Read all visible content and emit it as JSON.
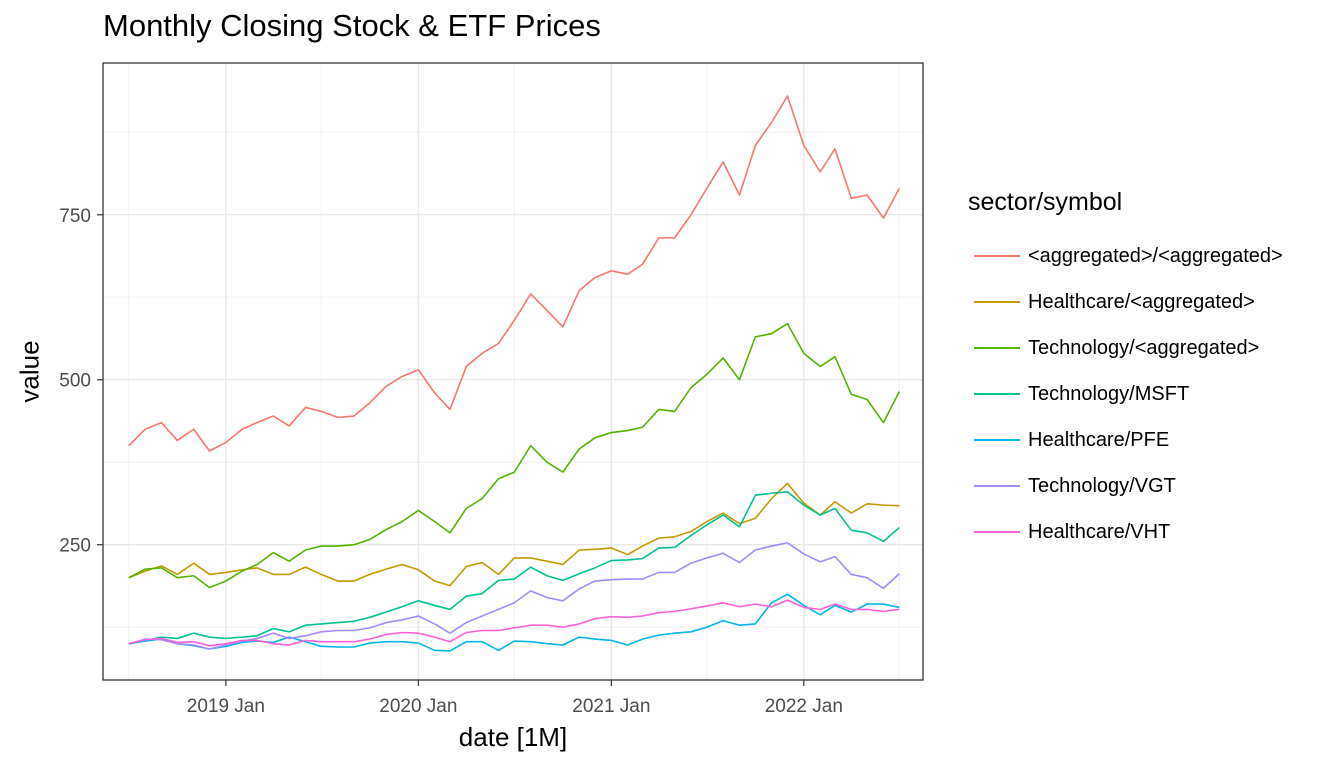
{
  "chart_data": {
    "type": "line",
    "title": "Monthly Closing Stock & ETF Prices",
    "xlabel": "date [1M]",
    "ylabel": "value",
    "x_ticks": [
      "2019 Jan",
      "2020 Jan",
      "2021 Jan",
      "2022 Jan"
    ],
    "y_ticks": [
      250,
      500,
      750
    ],
    "ylim": [
      45,
      980
    ],
    "xlim": [
      "2018-05-13",
      "2022-08-15"
    ],
    "grid": true,
    "legend": {
      "title": "sector/symbol",
      "position": "right"
    },
    "x": [
      "2018-07",
      "2018-08",
      "2018-09",
      "2018-10",
      "2018-11",
      "2018-12",
      "2019-01",
      "2019-02",
      "2019-03",
      "2019-04",
      "2019-05",
      "2019-06",
      "2019-07",
      "2019-08",
      "2019-09",
      "2019-10",
      "2019-11",
      "2019-12",
      "2020-01",
      "2020-02",
      "2020-03",
      "2020-04",
      "2020-05",
      "2020-06",
      "2020-07",
      "2020-08",
      "2020-09",
      "2020-10",
      "2020-11",
      "2020-12",
      "2021-01",
      "2021-02",
      "2021-03",
      "2021-04",
      "2021-05",
      "2021-06",
      "2021-07",
      "2021-08",
      "2021-09",
      "2021-10",
      "2021-11",
      "2021-12",
      "2022-01",
      "2022-02",
      "2022-03",
      "2022-04",
      "2022-05",
      "2022-06",
      "2022-07"
    ],
    "series": [
      {
        "name": "<aggregated>/<aggregated>",
        "color": "#F8766D",
        "values": [
          400,
          425,
          435,
          408,
          425,
          392,
          405,
          425,
          435,
          445,
          430,
          458,
          452,
          443,
          445,
          465,
          490,
          505,
          515,
          480,
          455,
          520,
          540,
          555,
          590,
          630,
          605,
          580,
          635,
          655,
          665,
          660,
          675,
          715,
          715,
          750,
          790,
          830,
          780,
          855,
          890,
          930,
          855,
          815,
          850,
          775,
          780,
          745,
          790
        ]
      },
      {
        "name": "Healthcare/<aggregated>",
        "color": "#C49A00",
        "values": [
          200,
          210,
          218,
          205,
          222,
          205,
          208,
          212,
          215,
          205,
          205,
          216,
          205,
          195,
          195,
          205,
          213,
          220,
          212,
          195,
          188,
          217,
          223,
          205,
          230,
          230,
          225,
          220,
          242,
          243,
          245,
          235,
          248,
          260,
          262,
          270,
          285,
          298,
          282,
          290,
          320,
          343,
          313,
          295,
          315,
          298,
          312,
          310,
          309
        ]
      },
      {
        "name": "Technology/<aggregated>",
        "color": "#53B400",
        "values": [
          200,
          213,
          215,
          200,
          203,
          185,
          195,
          210,
          220,
          238,
          225,
          242,
          248,
          248,
          250,
          258,
          273,
          285,
          302,
          285,
          268,
          305,
          320,
          350,
          360,
          400,
          375,
          360,
          395,
          412,
          420,
          423,
          428,
          455,
          452,
          488,
          508,
          533,
          500,
          565,
          570,
          585,
          540,
          520,
          535,
          478,
          470,
          435,
          482
        ]
      },
      {
        "name": "Technology/MSFT",
        "color": "#00C094",
        "values": [
          100,
          105,
          110,
          108,
          116,
          110,
          108,
          110,
          112,
          123,
          118,
          128,
          130,
          132,
          134,
          140,
          148,
          156,
          165,
          158,
          152,
          172,
          176,
          196,
          198,
          216,
          203,
          196,
          206,
          215,
          226,
          227,
          229,
          245,
          246,
          264,
          280,
          295,
          277,
          325,
          328,
          330,
          310,
          295,
          305,
          272,
          268,
          255,
          276
        ]
      },
      {
        "name": "Healthcare/PFE",
        "color": "#00B6EB",
        "values": [
          100,
          104,
          107,
          100,
          97,
          92,
          96,
          102,
          104,
          102,
          110,
          103,
          96,
          95,
          95,
          101,
          103,
          103,
          101,
          90,
          89,
          103,
          103,
          90,
          104,
          103,
          100,
          98,
          110,
          107,
          105,
          98,
          107,
          113,
          116,
          118,
          125,
          135,
          128,
          130,
          162,
          175,
          158,
          144,
          158,
          148,
          160,
          160,
          155
        ]
      },
      {
        "name": "Technology/VGT",
        "color": "#A58AFF",
        "values": [
          100,
          107,
          106,
          100,
          98,
          92,
          98,
          104,
          108,
          116,
          108,
          112,
          118,
          120,
          120,
          124,
          132,
          136,
          142,
          130,
          116,
          132,
          142,
          152,
          162,
          180,
          170,
          165,
          183,
          195,
          197,
          198,
          198,
          208,
          208,
          222,
          230,
          237,
          223,
          242,
          248,
          253,
          236,
          224,
          232,
          205,
          200,
          184,
          206
        ]
      },
      {
        "name": "Healthcare/VHT",
        "color": "#FB61D7",
        "values": [
          100,
          106,
          108,
          102,
          103,
          97,
          100,
          105,
          105,
          100,
          98,
          105,
          103,
          103,
          103,
          107,
          114,
          117,
          116,
          110,
          103,
          117,
          120,
          120,
          124,
          128,
          128,
          125,
          130,
          138,
          141,
          140,
          142,
          147,
          149,
          153,
          157,
          162,
          156,
          160,
          156,
          166,
          155,
          152,
          160,
          152,
          152,
          149,
          152
        ]
      }
    ]
  }
}
